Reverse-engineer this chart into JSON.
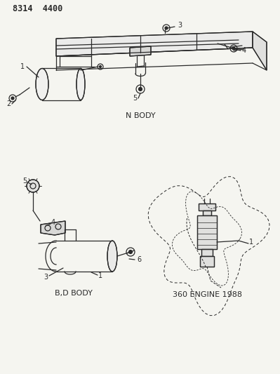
{
  "title": "8314  4400",
  "bg_color": "#f5f5f0",
  "line_color": "#2a2a2a",
  "label_color": "#1a1a1a",
  "section_labels": {
    "n_body": "N BODY",
    "bd_body": "B,D BODY",
    "engine": "360 ENGINE 1988"
  },
  "figsize": [
    3.99,
    5.33
  ],
  "dpi": 100
}
